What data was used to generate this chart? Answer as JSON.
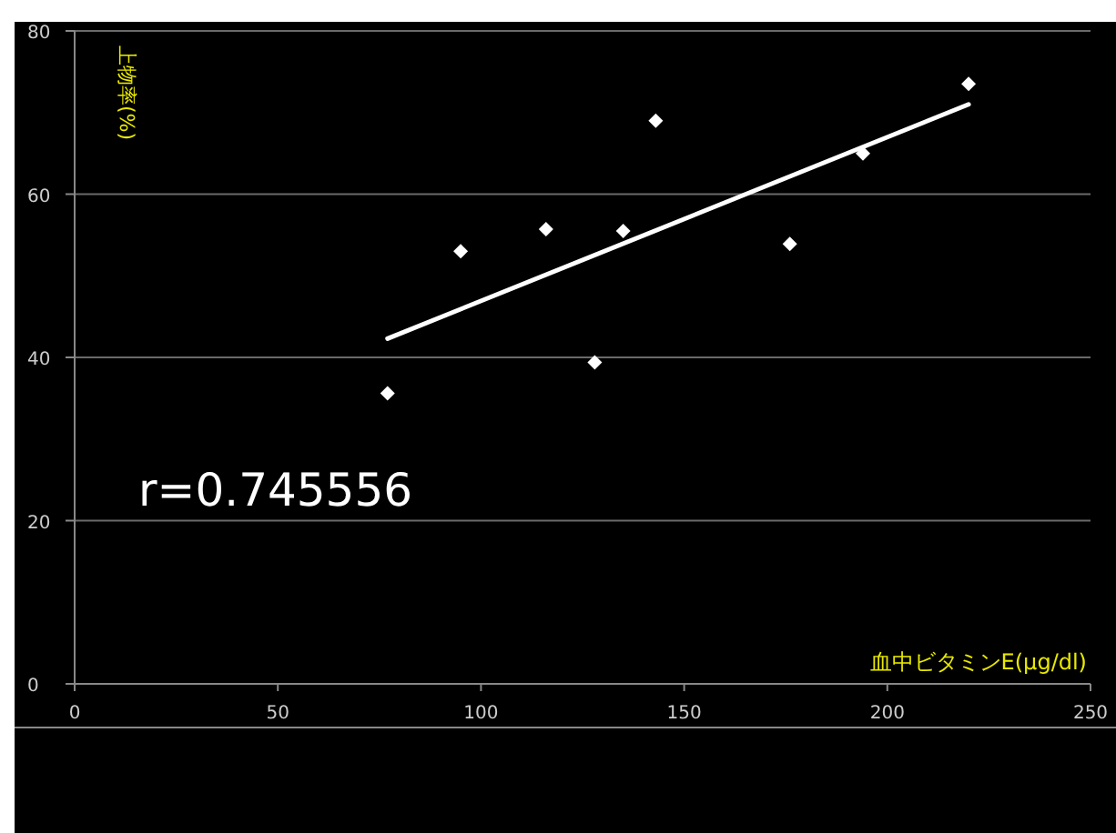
{
  "chart_data": {
    "type": "scatter",
    "xlabel": "血中ビタミンE(μg/dl)",
    "ylabel": "上物率(%)",
    "annotations": [
      "r=0.745556"
    ],
    "marker": "diamond",
    "grid": "y",
    "xlim": [
      0,
      250
    ],
    "ylim": [
      0,
      80
    ],
    "xticks": [
      0,
      50,
      100,
      150,
      200,
      250
    ],
    "yticks": [
      0,
      20,
      40,
      60,
      80
    ],
    "series": [
      {
        "color": "#ffffff",
        "x": [
          77,
          95,
          116,
          128,
          135,
          143,
          176,
          194,
          220
        ],
        "values": [
          35.6,
          53,
          55.7,
          39.4,
          55.5,
          69,
          53.9,
          65,
          73.5
        ]
      },
      {
        "type": "line",
        "color": "#ffffff",
        "marker": "none",
        "x": [
          77,
          220
        ],
        "values": [
          42.3,
          71
        ]
      }
    ]
  }
}
